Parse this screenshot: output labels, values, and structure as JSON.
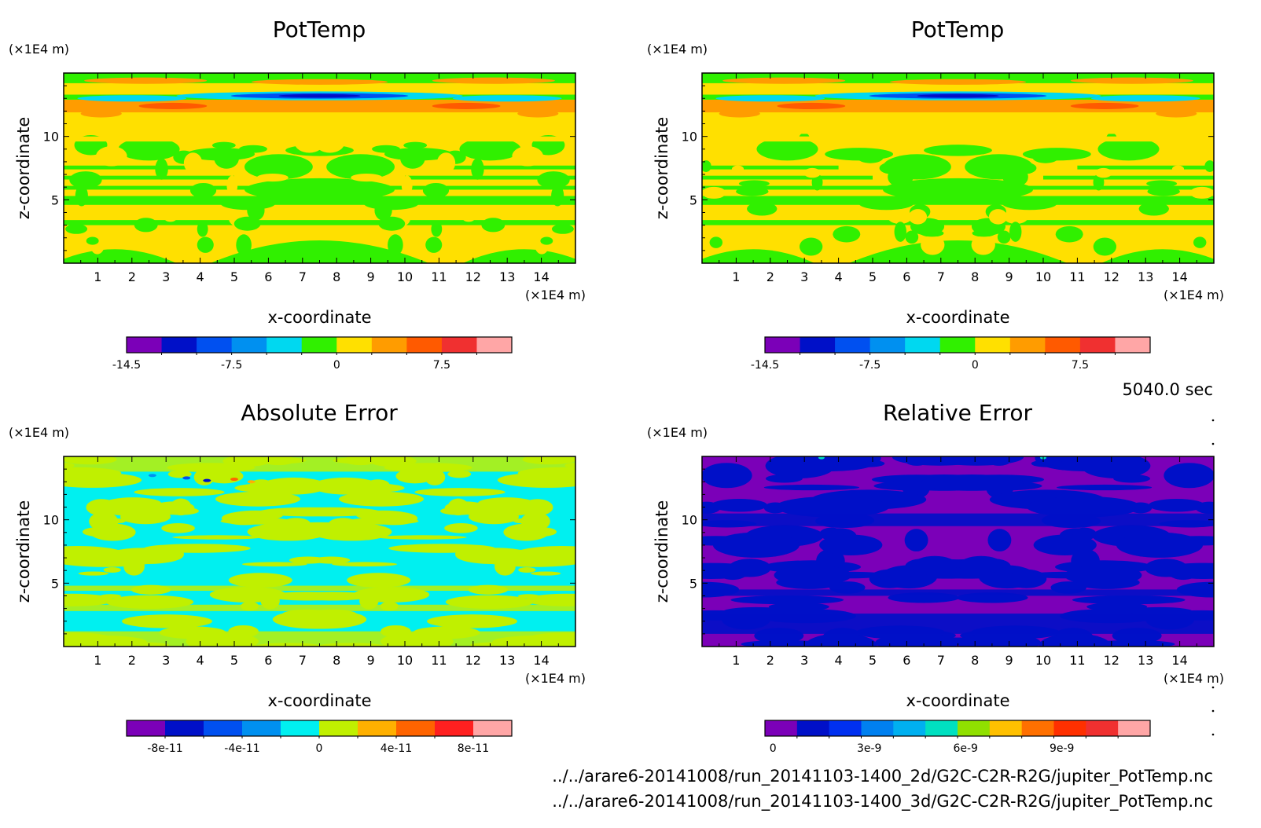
{
  "figure": {
    "time_label": "5040.0 sec",
    "file_paths": [
      "../../arare6-20141008/run_20141103-1400_2d/G2C-C2R-R2G/jupiter_PotTemp.nc",
      "../../arare6-20141008/run_20141103-1400_3d/G2C-C2R-R2G/jupiter_PotTemp.nc"
    ]
  },
  "panels": [
    {
      "title": "PotTemp",
      "xlabel": "x-coordinate",
      "ylabel": "z-coordinate",
      "xunit": "(×1E4 m)",
      "yunit": "(×1E4 m)",
      "xticks": [
        "1",
        "2",
        "3",
        "4",
        "5",
        "6",
        "7",
        "8",
        "9",
        "10",
        "11",
        "12",
        "13",
        "14"
      ],
      "yticks": [
        "5",
        "10"
      ],
      "colorbar": {
        "colors": [
          "#7b00b8",
          "#0010c8",
          "#0050f0",
          "#0090f0",
          "#00d8f0",
          "#30f000",
          "#ffe000",
          "#ff9c00",
          "#ff5a00",
          "#f03030",
          "#ffa6a6"
        ],
        "labels": [
          {
            "text": "-14.5",
            "pos": 0.0
          },
          {
            "text": "-7.5",
            "pos": 0.2727
          },
          {
            "text": "0",
            "pos": 0.5455
          },
          {
            "text": "7.5",
            "pos": 0.8182
          }
        ]
      }
    },
    {
      "title": "PotTemp",
      "xlabel": "x-coordinate",
      "ylabel": "z-coordinate",
      "xunit": "(×1E4 m)",
      "yunit": "(×1E4 m)",
      "xticks": [
        "1",
        "2",
        "3",
        "4",
        "5",
        "6",
        "7",
        "8",
        "9",
        "10",
        "11",
        "12",
        "13",
        "14"
      ],
      "yticks": [
        "5",
        "10"
      ],
      "colorbar": {
        "colors": [
          "#7b00b8",
          "#0010c8",
          "#0050f0",
          "#0090f0",
          "#00d8f0",
          "#30f000",
          "#ffe000",
          "#ff9c00",
          "#ff5a00",
          "#f03030",
          "#ffa6a6"
        ],
        "labels": [
          {
            "text": "-14.5",
            "pos": 0.0
          },
          {
            "text": "-7.5",
            "pos": 0.2727
          },
          {
            "text": "0",
            "pos": 0.5455
          },
          {
            "text": "7.5",
            "pos": 0.8182
          }
        ]
      }
    },
    {
      "title": "Absolute Error",
      "xlabel": "x-coordinate",
      "ylabel": "z-coordinate",
      "xunit": "(×1E4 m)",
      "yunit": "(×1E4 m)",
      "xticks": [
        "1",
        "2",
        "3",
        "4",
        "5",
        "6",
        "7",
        "8",
        "9",
        "10",
        "11",
        "12",
        "13",
        "14"
      ],
      "yticks": [
        "5",
        "10"
      ],
      "colorbar": {
        "colors": [
          "#7b00b8",
          "#0010c8",
          "#0050f0",
          "#0090f0",
          "#00f0f0",
          "#c0f000",
          "#ffb000",
          "#ff6400",
          "#ff2020",
          "#ffa6a6"
        ],
        "labels": [
          {
            "text": "-8e-11",
            "pos": 0.1
          },
          {
            "text": "-4e-11",
            "pos": 0.3
          },
          {
            "text": "0",
            "pos": 0.5
          },
          {
            "text": "4e-11",
            "pos": 0.7
          },
          {
            "text": "8e-11",
            "pos": 0.9
          }
        ]
      }
    },
    {
      "title": "Relative Error",
      "xlabel": "x-coordinate",
      "ylabel": "z-coordinate",
      "xunit": "(×1E4 m)",
      "yunit": "(×1E4 m)",
      "xticks": [
        "1",
        "2",
        "3",
        "4",
        "5",
        "6",
        "7",
        "8",
        "9",
        "10",
        "11",
        "12",
        "13",
        "14"
      ],
      "yticks": [
        "5",
        "10"
      ],
      "colorbar": {
        "colors": [
          "#7b00b8",
          "#0010c8",
          "#0030f0",
          "#0080f0",
          "#00b0f0",
          "#00e0c0",
          "#90e000",
          "#ffc000",
          "#ff7000",
          "#ff3000",
          "#f03030",
          "#ffa6a6"
        ],
        "labels": [
          {
            "text": "0",
            "pos": 0.0208
          },
          {
            "text": "3e-9",
            "pos": 0.2708
          },
          {
            "text": "6e-9",
            "pos": 0.5208
          },
          {
            "text": "9e-9",
            "pos": 0.7708
          }
        ]
      }
    }
  ],
  "chart_data": [
    {
      "type": "heatmap",
      "title": "PotTemp",
      "xlabel": "x-coordinate",
      "ylabel": "z-coordinate",
      "x_unit": "(×1E4 m)",
      "y_unit": "(×1E4 m)",
      "xlim": [
        0,
        15
      ],
      "ylim": [
        0,
        15
      ],
      "colorbar_ticks": [
        -14.5,
        -7.5,
        0,
        7.5
      ],
      "field_regions": [
        {
          "z_range": [
            0,
            3
          ],
          "dominant": "green/yellow bands, green mounds centered near x=7.5"
        },
        {
          "z_range": [
            3,
            4.5
          ],
          "dominant": "yellow"
        },
        {
          "z_range": [
            4.5,
            9.5
          ],
          "dominant": "green/yellow alternating bands with symmetric green structures"
        },
        {
          "z_range": [
            9.5,
            12
          ],
          "dominant": "yellow"
        },
        {
          "z_range": [
            12,
            13
          ],
          "dominant": "orange, red patches near x=3 and x=12"
        },
        {
          "z_range": [
            13,
            15
          ],
          "dominant": "green/yellow with cyan/blue band near x=7.5"
        }
      ]
    },
    {
      "type": "heatmap",
      "title": "PotTemp",
      "xlabel": "x-coordinate",
      "ylabel": "z-coordinate",
      "x_unit": "(×1E4 m)",
      "y_unit": "(×1E4 m)",
      "xlim": [
        0,
        15
      ],
      "ylim": [
        0,
        15
      ],
      "colorbar_ticks": [
        -14.5,
        -7.5,
        0,
        7.5
      ]
    },
    {
      "type": "heatmap",
      "title": "Absolute Error",
      "xlabel": "x-coordinate",
      "ylabel": "z-coordinate",
      "x_unit": "(×1E4 m)",
      "y_unit": "(×1E4 m)",
      "xlim": [
        0,
        15
      ],
      "ylim": [
        0,
        15
      ],
      "colorbar_ticks": [
        -8e-11,
        -4e-11,
        0,
        4e-11,
        8e-11
      ],
      "field_regions": [
        {
          "z_range": [
            0,
            15
          ],
          "dominant": "cyan and yellow-green (values near 0), sparse blue/orange specks near z=13, x=3-6"
        }
      ]
    },
    {
      "type": "heatmap",
      "title": "Relative Error",
      "xlabel": "x-coordinate",
      "ylabel": "z-coordinate",
      "x_unit": "(×1E4 m)",
      "y_unit": "(×1E4 m)",
      "xlim": [
        0,
        15
      ],
      "ylim": [
        0,
        15
      ],
      "colorbar_ticks": [
        0,
        3e-09,
        6e-09,
        9e-09
      ],
      "field_regions": [
        {
          "z_range": [
            0,
            15
          ],
          "dominant": "purple and dark blue (values near 0)"
        }
      ]
    }
  ]
}
